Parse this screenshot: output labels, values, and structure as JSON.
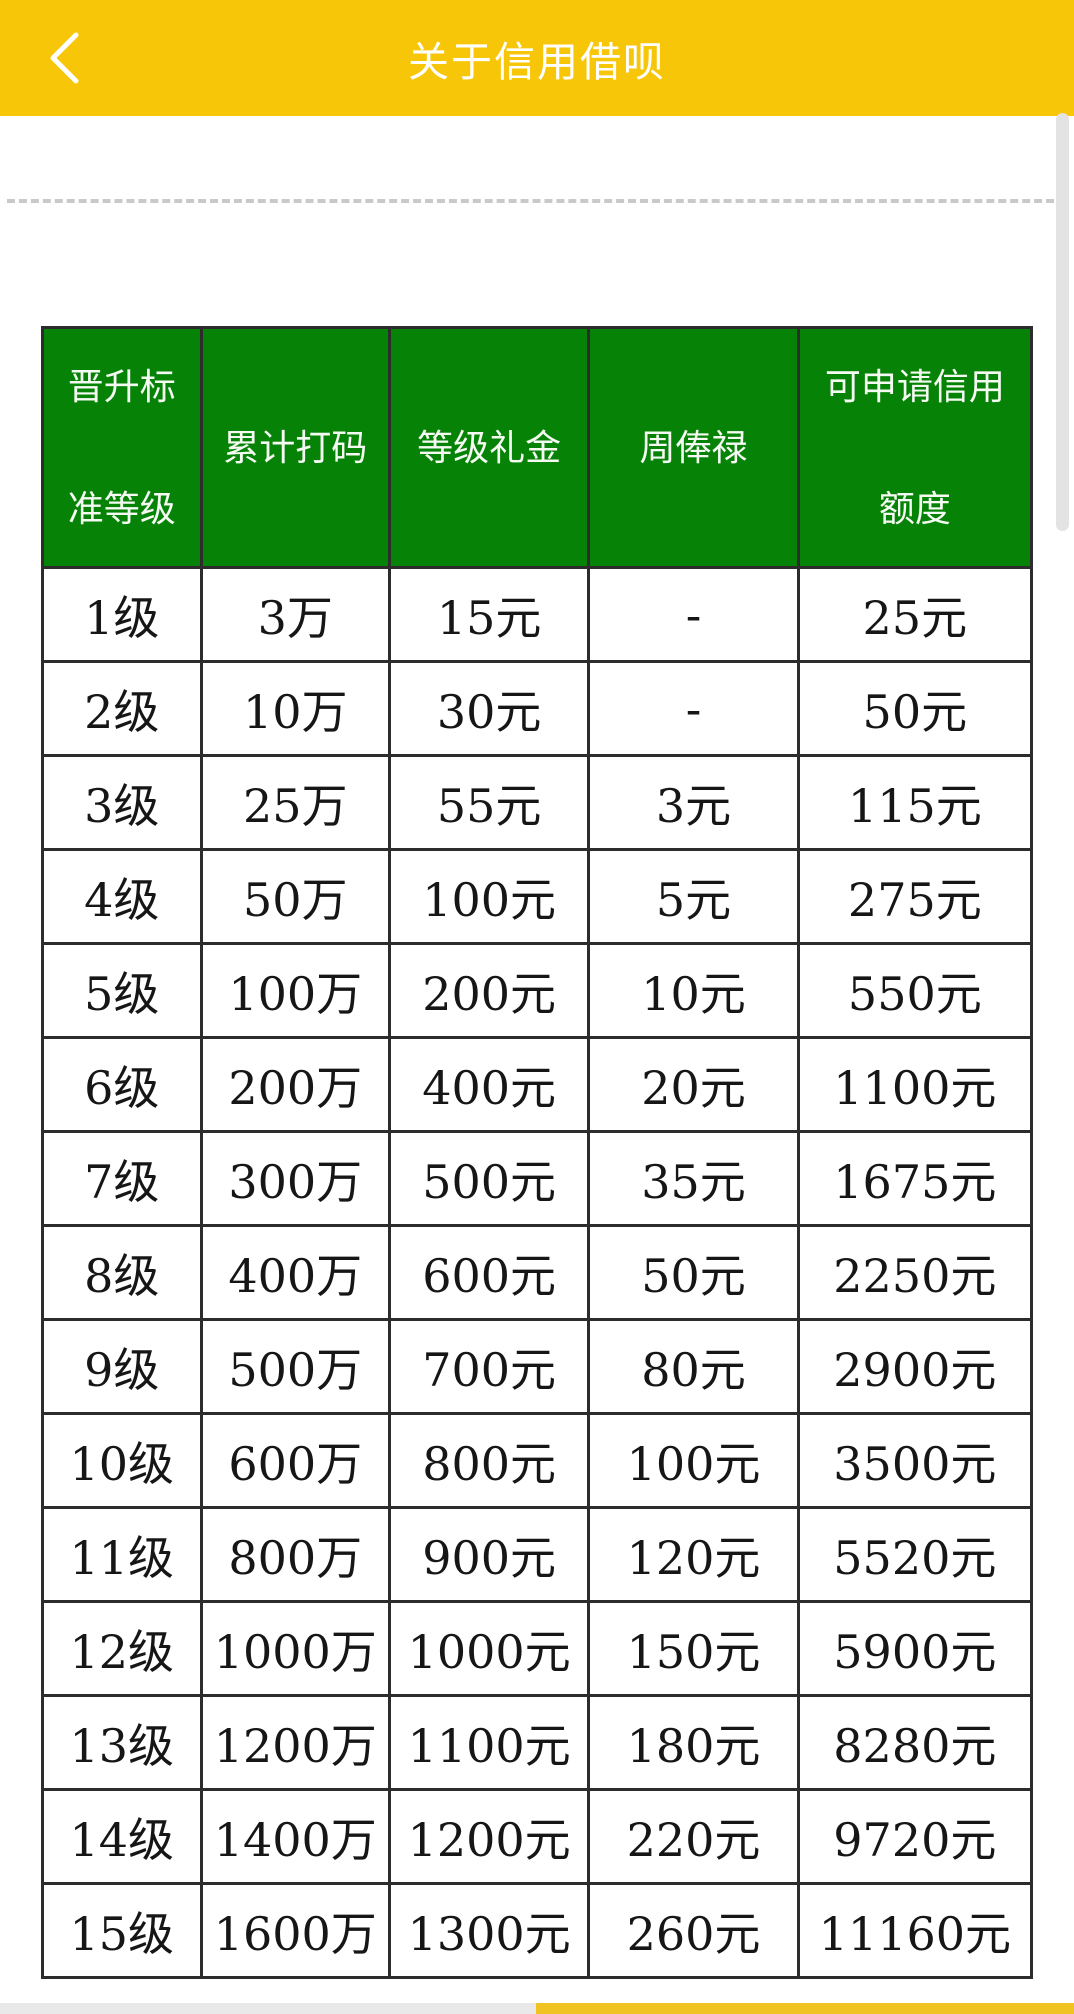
{
  "app_bar": {
    "title": "关于信用借呗"
  },
  "colors": {
    "app_bar_bg": "#F7C608",
    "header_green": "#068306",
    "border_color": "#2c2c2c",
    "dash_color": "#c9c9c9",
    "scrollbar_color": "#e3e3e3",
    "bottom_left": "#e9e9e9",
    "bottom_right": "#F1C322"
  },
  "table": {
    "headers": [
      {
        "line1": "晋升标",
        "line2": "准等级"
      },
      {
        "line1": "累计打码"
      },
      {
        "line1": "等级礼金"
      },
      {
        "line1": "周俸禄"
      },
      {
        "line1": "可申请信用",
        "line2": "额度"
      }
    ],
    "col_widths_pct": [
      16.03,
      19.05,
      20.16,
      21.17,
      23.59
    ],
    "rows": [
      [
        "1级",
        "3万",
        "15元",
        "-",
        "25元"
      ],
      [
        "2级",
        "10万",
        "30元",
        "-",
        "50元"
      ],
      [
        "3级",
        "25万",
        "55元",
        "3元",
        "115元"
      ],
      [
        "4级",
        "50万",
        "100元",
        "5元",
        "275元"
      ],
      [
        "5级",
        "100万",
        "200元",
        "10元",
        "550元"
      ],
      [
        "6级",
        "200万",
        "400元",
        "20元",
        "1100元"
      ],
      [
        "7级",
        "300万",
        "500元",
        "35元",
        "1675元"
      ],
      [
        "8级",
        "400万",
        "600元",
        "50元",
        "2250元"
      ],
      [
        "9级",
        "500万",
        "700元",
        "80元",
        "2900元"
      ],
      [
        "10级",
        "600万",
        "800元",
        "100元",
        "3500元"
      ],
      [
        "11级",
        "800万",
        "900元",
        "120元",
        "5520元"
      ],
      [
        "12级",
        "1000万",
        "1000元",
        "150元",
        "5900元"
      ],
      [
        "13级",
        "1200万",
        "1100元",
        "180元",
        "8280元"
      ],
      [
        "14级",
        "1400万",
        "1200元",
        "220元",
        "9720元"
      ],
      [
        "15级",
        "1600万",
        "1300元",
        "260元",
        "11160元"
      ]
    ]
  }
}
